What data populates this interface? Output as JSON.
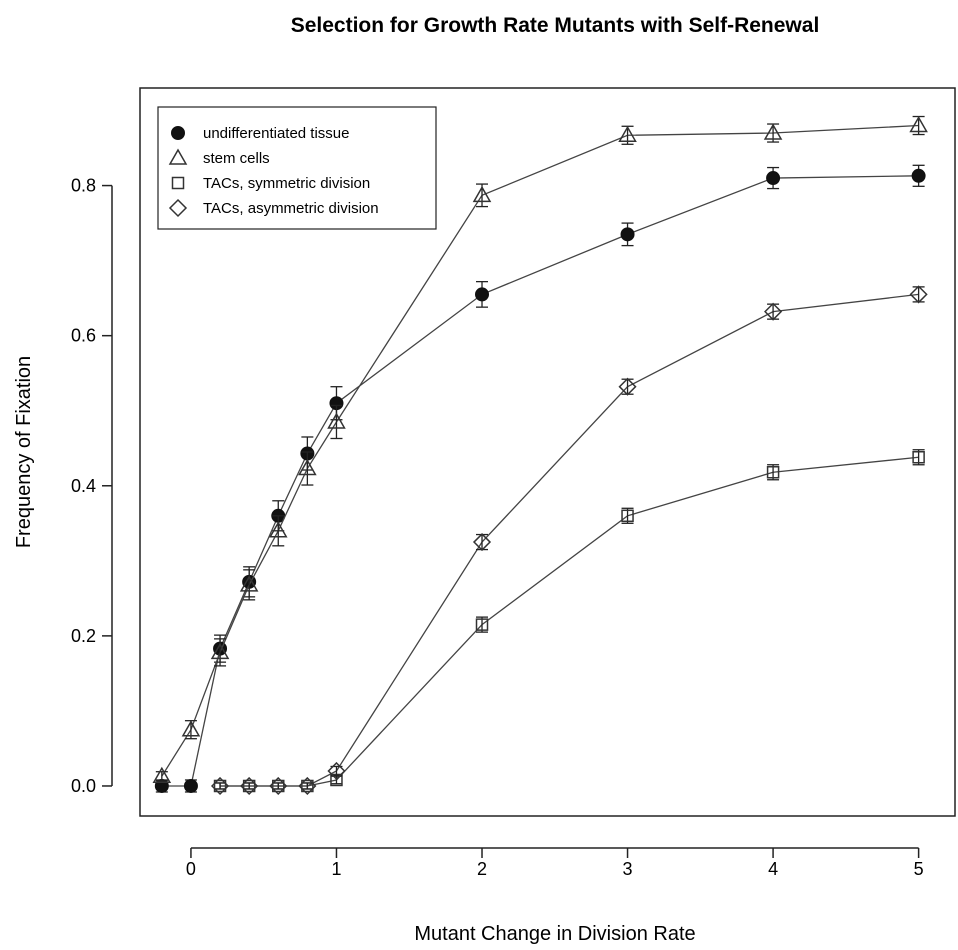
{
  "chart_data": {
    "type": "line",
    "title": "Selection for Growth Rate Mutants with Self-Renewal",
    "xlabel": "Mutant Change in Division Rate",
    "ylabel": "Frequency of Fixation",
    "xlim": [
      -0.35,
      5.25
    ],
    "ylim": [
      -0.04,
      0.93
    ],
    "xticks": [
      0,
      1,
      2,
      3,
      4,
      5
    ],
    "xtick_labels": [
      "0",
      "1",
      "2",
      "3",
      "4",
      "5"
    ],
    "yticks": [
      0.0,
      0.2,
      0.4,
      0.6,
      0.8
    ],
    "ytick_labels": [
      "0.0",
      "0.2",
      "0.4",
      "0.6",
      "0.8"
    ],
    "grid": false,
    "legend_position": "top-left",
    "series": [
      {
        "name": "undifferentiated tissue",
        "marker": "filled-circle",
        "x": [
          -0.2,
          0,
          0.2,
          0.4,
          0.6,
          0.8,
          1,
          2,
          3,
          4,
          5
        ],
        "y": [
          0.0,
          0.0,
          0.183,
          0.272,
          0.36,
          0.443,
          0.51,
          0.655,
          0.735,
          0.81,
          0.813
        ],
        "err": [
          0.008,
          0.008,
          0.018,
          0.02,
          0.02,
          0.022,
          0.022,
          0.017,
          0.015,
          0.014,
          0.014
        ]
      },
      {
        "name": "stem cells",
        "marker": "open-triangle",
        "x": [
          -0.2,
          0,
          0.2,
          0.4,
          0.6,
          0.8,
          1,
          2,
          3,
          4,
          5
        ],
        "y": [
          0.013,
          0.075,
          0.178,
          0.268,
          0.34,
          0.423,
          0.485,
          0.787,
          0.867,
          0.87,
          0.88
        ],
        "err": [
          0.006,
          0.012,
          0.018,
          0.02,
          0.02,
          0.022,
          0.022,
          0.015,
          0.012,
          0.012,
          0.012
        ]
      },
      {
        "name": "TACs, symmetric division",
        "marker": "open-square",
        "x": [
          0.2,
          0.4,
          0.6,
          0.8,
          1,
          2,
          3,
          4,
          5
        ],
        "y": [
          0.0,
          0.0,
          0.0,
          0.0,
          0.008,
          0.215,
          0.36,
          0.418,
          0.438
        ],
        "err": [
          0.004,
          0.004,
          0.004,
          0.004,
          0.005,
          0.01,
          0.01,
          0.01,
          0.01
        ]
      },
      {
        "name": "TACs, asymmetric division",
        "marker": "open-diamond",
        "x": [
          0.2,
          0.4,
          0.6,
          0.8,
          1,
          2,
          3,
          4,
          5
        ],
        "y": [
          0.0,
          0.0,
          0.0,
          0.0,
          0.02,
          0.325,
          0.532,
          0.632,
          0.655
        ],
        "err": [
          0.004,
          0.004,
          0.004,
          0.004,
          0.006,
          0.01,
          0.01,
          0.01,
          0.01
        ]
      }
    ]
  }
}
